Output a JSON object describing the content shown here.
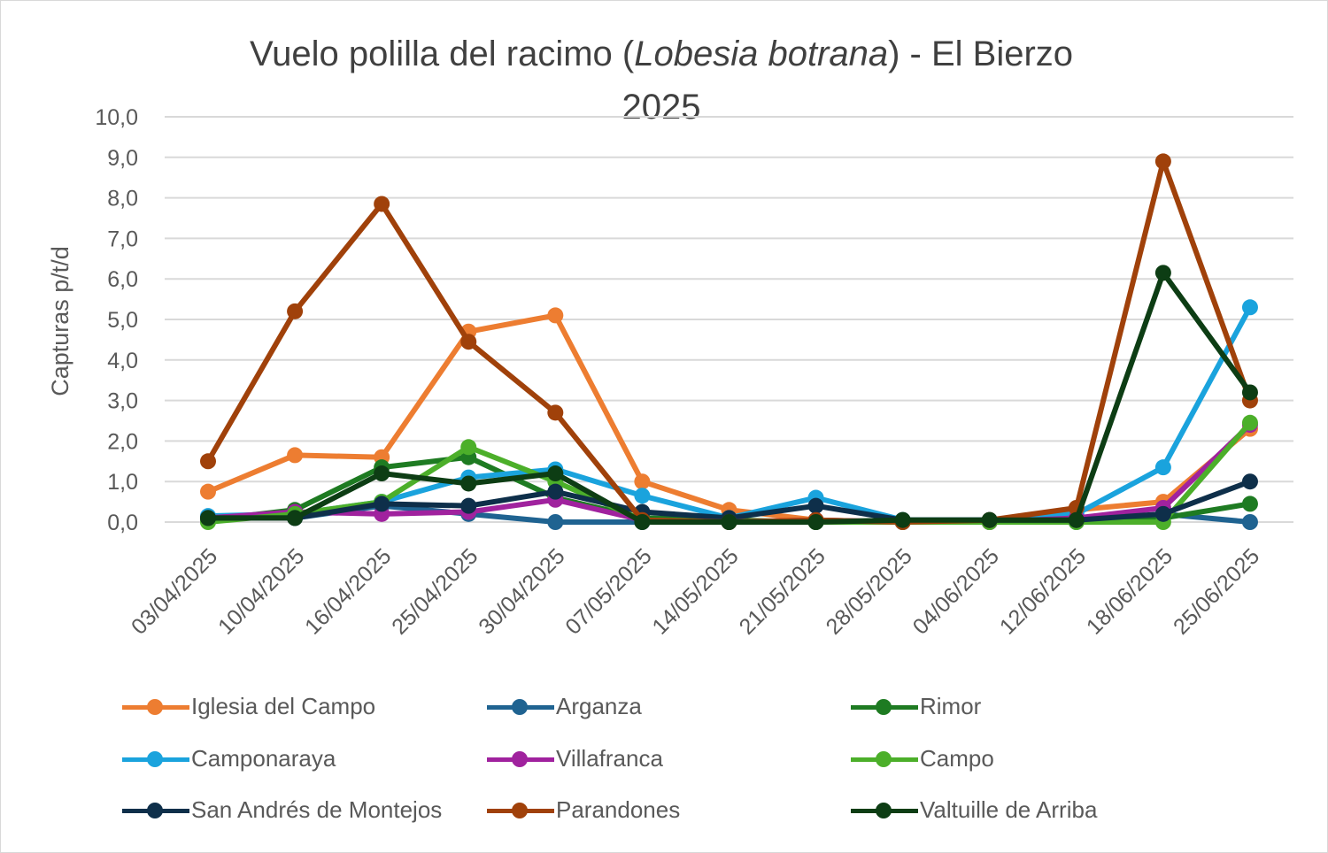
{
  "chart_data": {
    "type": "line",
    "title": "Vuelo polilla del racimo (Lobesia botrana) - El Bierzo 2025",
    "title_parts": {
      "before": "Vuelo polilla del racimo (",
      "italic": "Lobesia botrana",
      "after": ") - El Bierzo",
      "line2": "2025"
    },
    "xlabel": "",
    "ylabel": "Capturas p/t/d",
    "ylim": [
      0,
      10
    ],
    "yticks": [
      "0,0",
      "1,0",
      "2,0",
      "3,0",
      "4,0",
      "5,0",
      "6,0",
      "7,0",
      "8,0",
      "9,0",
      "10,0"
    ],
    "grid": true,
    "legend_position": "bottom",
    "categories": [
      "03/04/2025",
      "10/04/2025",
      "16/04/2025",
      "25/04/2025",
      "30/04/2025",
      "07/05/2025",
      "14/05/2025",
      "21/05/2025",
      "28/05/2025",
      "04/06/2025",
      "12/06/2025",
      "18/06/2025",
      "25/06/2025"
    ],
    "series": [
      {
        "name": "Iglesia del Campo",
        "color": "#ED7D31",
        "values": [
          0.75,
          1.65,
          1.6,
          4.7,
          5.1,
          1.0,
          0.3,
          0.05,
          0,
          0,
          0.3,
          0.5,
          2.3
        ]
      },
      {
        "name": "Arganza",
        "color": "#1F6391",
        "values": [
          0.1,
          0.1,
          0.4,
          0.2,
          0,
          0,
          0,
          0,
          0,
          0,
          0,
          0.2,
          0
        ]
      },
      {
        "name": "Rimor",
        "color": "#1E7B22",
        "values": [
          0.05,
          0.3,
          1.35,
          1.6,
          0.6,
          0.1,
          0.05,
          0,
          0.05,
          0.05,
          0.05,
          0.1,
          0.45
        ]
      },
      {
        "name": "Camponaraya",
        "color": "#1AA3DD",
        "values": [
          0.15,
          0.2,
          0.5,
          1.1,
          1.3,
          0.65,
          0.1,
          0.6,
          0.05,
          0.05,
          0.2,
          1.35,
          5.3
        ]
      },
      {
        "name": "Villafranca",
        "color": "#A0229E",
        "values": [
          0.1,
          0.25,
          0.2,
          0.25,
          0.55,
          0.05,
          0,
          0.05,
          0,
          0,
          0.1,
          0.35,
          2.4
        ]
      },
      {
        "name": "Campo",
        "color": "#4CAF2A",
        "values": [
          0,
          0.2,
          0.5,
          1.85,
          1.0,
          0.05,
          0,
          0,
          0,
          0,
          0,
          0,
          2.45
        ]
      },
      {
        "name": "San Andrés de Montejos",
        "color": "#0E2F4A",
        "values": [
          0.1,
          0.1,
          0.45,
          0.4,
          0.75,
          0.25,
          0.1,
          0.4,
          0.05,
          0.05,
          0.05,
          0.2,
          1.0
        ]
      },
      {
        "name": "Parandones",
        "color": "#A0410A",
        "values": [
          1.5,
          5.2,
          7.85,
          4.45,
          2.7,
          0.05,
          0,
          0.05,
          0,
          0.05,
          0.35,
          8.9,
          3.0
        ]
      },
      {
        "name": "Valtuille de Arriba",
        "color": "#0D3D14",
        "values": [
          0.1,
          0.1,
          1.2,
          0.95,
          1.2,
          0,
          0,
          0,
          0.05,
          0.05,
          0.05,
          6.15,
          3.2
        ]
      }
    ]
  }
}
